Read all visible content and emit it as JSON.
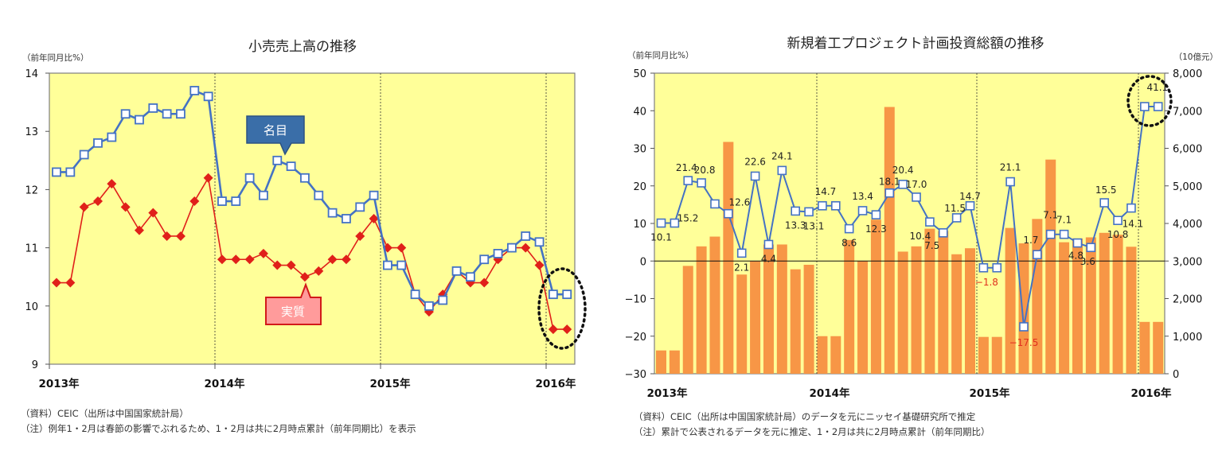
{
  "left_chart": {
    "title": "小売売上高の推移",
    "unit_label": "（前年同月比%）",
    "y_ticks": [
      "14",
      "13",
      "12",
      "11",
      "10",
      "9"
    ],
    "x_ticks": [
      "2013年",
      "2014年",
      "2015年",
      "2016年"
    ],
    "callouts": {
      "nominal": "名目",
      "real": "実質"
    },
    "notes": {
      "source": "（資料）CEIC（出所は中国国家統計局）",
      "note": "（注）例年1・2月は春節の影響でぶれるため、1・2月は共に2月時点累計（前年同期比）を表示"
    },
    "colors": {
      "plot_bg": "#ffff99",
      "nominal": "#4472c4",
      "real": "#e0201a"
    }
  },
  "right_chart": {
    "title": "新規着工プロジェクト計画投資総額の推移",
    "unit_label_left": "（前年同月比%）",
    "unit_label_right": "（10億元）",
    "y_ticks_left": [
      "50",
      "40",
      "30",
      "20",
      "10",
      "0",
      "−10",
      "−20",
      "−30"
    ],
    "y_ticks_right": [
      "8,000",
      "7,000",
      "6,000",
      "5,000",
      "4,000",
      "3,000",
      "2,000",
      "1,000",
      "0"
    ],
    "x_ticks": [
      "2013年",
      "2014年",
      "2015年",
      "2016年"
    ],
    "notes": {
      "source": "（資料）CEIC（出所は中国国家統計局）のデータを元にニッセイ基礎研究所で推定",
      "note": "（注）累計で公表されるデータを元に推定、1・2月は共に2月時点累計（前年同期比）"
    },
    "colors": {
      "plot_bg": "#ffff99",
      "bar": "#f79646",
      "line": "#4472c4",
      "neg_label": "#e0301e"
    }
  },
  "chart_data": [
    {
      "type": "line",
      "title": "小売売上高の推移",
      "xlabel": "",
      "ylabel": "前年同月比%",
      "ylim": [
        9,
        14
      ],
      "x": [
        "2013-01",
        "2013-02",
        "2013-03",
        "2013-04",
        "2013-05",
        "2013-06",
        "2013-07",
        "2013-08",
        "2013-09",
        "2013-10",
        "2013-11",
        "2013-12",
        "2014-01",
        "2014-02",
        "2014-03",
        "2014-04",
        "2014-05",
        "2014-06",
        "2014-07",
        "2014-08",
        "2014-09",
        "2014-10",
        "2014-11",
        "2014-12",
        "2015-01",
        "2015-02",
        "2015-03",
        "2015-04",
        "2015-05",
        "2015-06",
        "2015-07",
        "2015-08",
        "2015-09",
        "2015-10",
        "2015-11",
        "2015-12",
        "2016-01",
        "2016-02"
      ],
      "series": [
        {
          "name": "名目",
          "values": [
            12.3,
            12.3,
            12.6,
            12.8,
            12.9,
            13.3,
            13.2,
            13.4,
            13.3,
            13.3,
            13.7,
            13.6,
            11.8,
            11.8,
            12.2,
            11.9,
            12.5,
            12.4,
            12.2,
            11.9,
            11.6,
            11.5,
            11.7,
            11.9,
            10.7,
            10.7,
            10.2,
            10.0,
            10.1,
            10.6,
            10.5,
            10.8,
            10.9,
            11.0,
            11.2,
            11.1,
            10.2,
            10.2
          ]
        },
        {
          "name": "実質",
          "values": [
            10.4,
            10.4,
            11.7,
            11.8,
            12.1,
            11.7,
            11.3,
            11.6,
            11.2,
            11.2,
            11.8,
            12.2,
            10.8,
            10.8,
            10.8,
            10.9,
            10.7,
            10.7,
            10.5,
            10.6,
            10.8,
            10.8,
            11.2,
            11.5,
            11.0,
            11.0,
            10.2,
            9.9,
            10.2,
            10.6,
            10.4,
            10.4,
            10.8,
            11.0,
            11.0,
            10.7,
            9.6,
            9.6
          ]
        }
      ],
      "x_tick_labels": [
        "2013年",
        "2014年",
        "2015年",
        "2016年"
      ],
      "grid": false,
      "annotations": [
        "名目 callout (blue)",
        "実質 callout (red)",
        "dotted ellipse around 2016 Jan-Feb points"
      ]
    },
    {
      "type": "bar+line",
      "title": "新規着工プロジェクト計画投資総額の推移",
      "ylabel_left": "前年同月比%",
      "ylabel_right": "10億元",
      "ylim_left": [
        -30,
        50
      ],
      "ylim_right": [
        0,
        8000
      ],
      "x": [
        "2013-01",
        "2013-02",
        "2013-03",
        "2013-04",
        "2013-05",
        "2013-06",
        "2013-07",
        "2013-08",
        "2013-09",
        "2013-10",
        "2013-11",
        "2013-12",
        "2014-01",
        "2014-02",
        "2014-03",
        "2014-04",
        "2014-05",
        "2014-06",
        "2014-07",
        "2014-08",
        "2014-09",
        "2014-10",
        "2014-11",
        "2014-12",
        "2015-01",
        "2015-02",
        "2015-03",
        "2015-04",
        "2015-05",
        "2015-06",
        "2015-07",
        "2015-08",
        "2015-09",
        "2015-10",
        "2015-11",
        "2015-12",
        "2016-01",
        "2016-02"
      ],
      "series": [
        {
          "name": "計画投資総額（10億元, 右軸）",
          "type": "bar",
          "values": [
            620,
            620,
            2870,
            3390,
            3650,
            6170,
            2640,
            3000,
            3440,
            3440,
            2780,
            2900,
            1000,
            1000,
            3560,
            3000,
            4100,
            7100,
            3250,
            3390,
            3860,
            3800,
            3180,
            3340,
            980,
            980,
            3880,
            3470,
            4120,
            5700,
            3500,
            3600,
            3630,
            3750,
            3700,
            3380,
            1380,
            1380
          ]
        },
        {
          "name": "前年同月比%（左軸）",
          "type": "line",
          "values": [
            10.1,
            10.1,
            21.4,
            20.8,
            15.2,
            12.6,
            2.1,
            22.6,
            4.4,
            24.1,
            13.3,
            13.1,
            14.7,
            14.7,
            8.6,
            13.4,
            12.3,
            18.1,
            20.4,
            17.0,
            10.4,
            7.5,
            11.5,
            14.7,
            -1.8,
            -1.8,
            21.1,
            -17.5,
            1.7,
            7.1,
            7.1,
            4.8,
            3.6,
            15.5,
            10.8,
            14.1,
            41.1,
            41.1
          ]
        }
      ],
      "x_tick_labels": [
        "2013年",
        "2014年",
        "2015年",
        "2016年"
      ],
      "grid": false,
      "annotations": [
        "dotted circle around 41.1 (2016 Jan-Feb)"
      ]
    }
  ]
}
